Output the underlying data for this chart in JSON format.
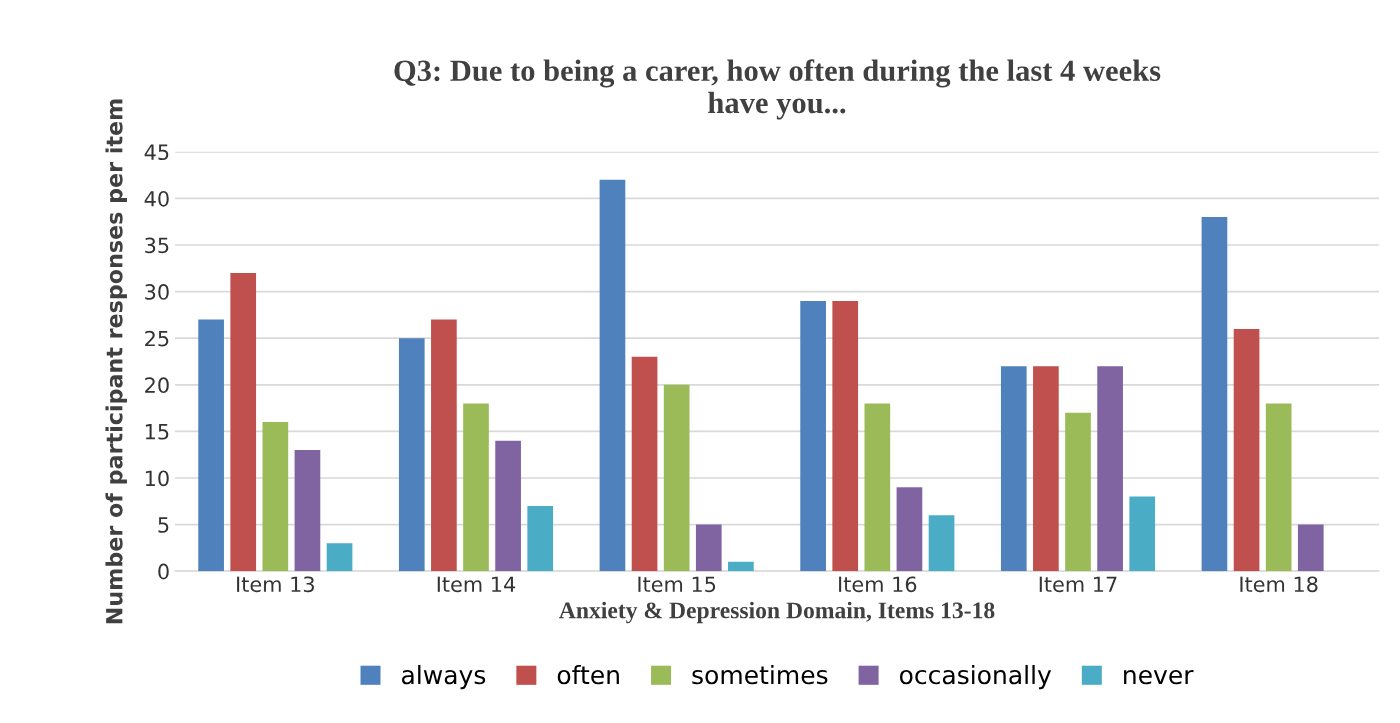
{
  "chart_data": {
    "type": "bar",
    "title": "Q3: Due to being a carer, how often during the last 4 weeks\nhave you...",
    "xlabel": "Anxiety & Depression Domain, Items 13-18",
    "ylabel": "Number of participant responses per item",
    "categories": [
      "Item 13",
      "Item 14",
      "Item 15",
      "Item 16",
      "Item 17",
      "Item 18"
    ],
    "series": [
      {
        "name": "always",
        "color": "#4f81bd",
        "values": [
          27,
          25,
          42,
          29,
          22,
          38
        ]
      },
      {
        "name": "often",
        "color": "#c0504d",
        "values": [
          32,
          27,
          23,
          29,
          22,
          26
        ]
      },
      {
        "name": "sometimes",
        "color": "#9bbb59",
        "values": [
          16,
          18,
          20,
          18,
          17,
          18
        ]
      },
      {
        "name": "occasionally",
        "color": "#8064a2",
        "values": [
          13,
          14,
          5,
          9,
          22,
          5
        ]
      },
      {
        "name": "never",
        "color": "#4bacc6",
        "values": [
          3,
          7,
          1,
          6,
          8,
          null
        ]
      }
    ],
    "ylim": [
      0,
      45
    ],
    "yticks": [
      0,
      5,
      10,
      15,
      20,
      25,
      30,
      35,
      40,
      45
    ],
    "grid": "y",
    "legend": "bottom"
  }
}
